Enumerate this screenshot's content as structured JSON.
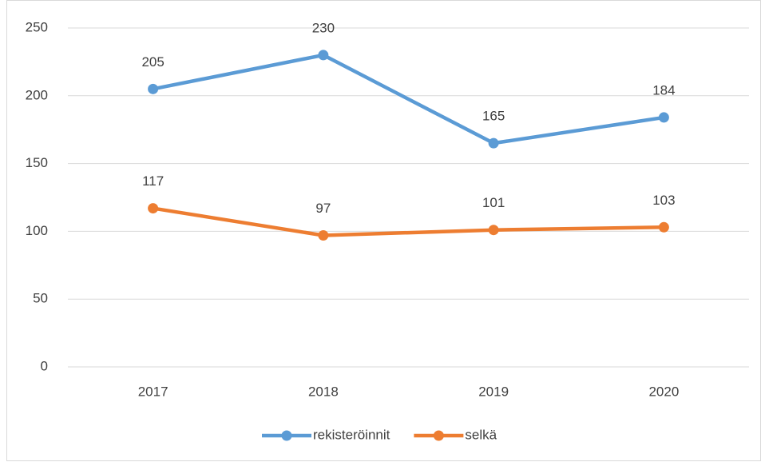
{
  "chart_data": {
    "type": "line",
    "categories": [
      "2017",
      "2018",
      "2019",
      "2020"
    ],
    "series": [
      {
        "name": "rekisteröinnit",
        "color": "#5b9bd5",
        "values": [
          205,
          230,
          165,
          184
        ]
      },
      {
        "name": "selkä",
        "color": "#ed7d31",
        "values": [
          117,
          97,
          101,
          103
        ]
      }
    ],
    "ylim": [
      0,
      250
    ],
    "yticks": [
      0,
      50,
      100,
      150,
      200,
      250
    ],
    "grid": true,
    "legend": "bottom"
  }
}
